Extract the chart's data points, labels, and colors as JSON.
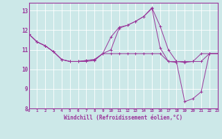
{
  "title": "",
  "xlabel": "Windchill (Refroidissement éolien,°C)",
  "ylabel": "",
  "background_color": "#cce8e8",
  "line_color": "#993399",
  "x_min": 0,
  "x_max": 23,
  "y_min": 8,
  "y_max": 13.4,
  "x_ticks": [
    0,
    1,
    2,
    3,
    4,
    5,
    6,
    7,
    8,
    9,
    10,
    11,
    12,
    13,
    14,
    15,
    16,
    17,
    18,
    19,
    20,
    21,
    22,
    23
  ],
  "y_ticks": [
    8,
    9,
    10,
    11,
    12,
    13
  ],
  "series": [
    [
      11.8,
      11.4,
      11.2,
      10.9,
      10.5,
      10.4,
      10.4,
      10.4,
      10.45,
      10.8,
      10.8,
      10.8,
      10.8,
      10.8,
      10.8,
      10.8,
      10.8,
      10.4,
      10.4,
      10.4,
      10.4,
      10.4,
      10.8,
      10.8
    ],
    [
      11.8,
      11.4,
      11.2,
      10.9,
      10.5,
      10.4,
      10.4,
      10.45,
      10.5,
      10.8,
      11.0,
      12.1,
      12.25,
      12.45,
      12.7,
      13.15,
      12.2,
      11.0,
      10.4,
      10.35,
      10.4,
      10.8,
      10.8,
      10.8
    ],
    [
      11.8,
      11.4,
      11.2,
      10.9,
      10.5,
      10.4,
      10.4,
      10.45,
      10.5,
      10.8,
      11.65,
      12.15,
      12.25,
      12.45,
      12.7,
      13.1,
      11.1,
      10.4,
      10.35,
      8.35,
      8.5,
      8.85,
      10.8,
      10.8
    ]
  ]
}
